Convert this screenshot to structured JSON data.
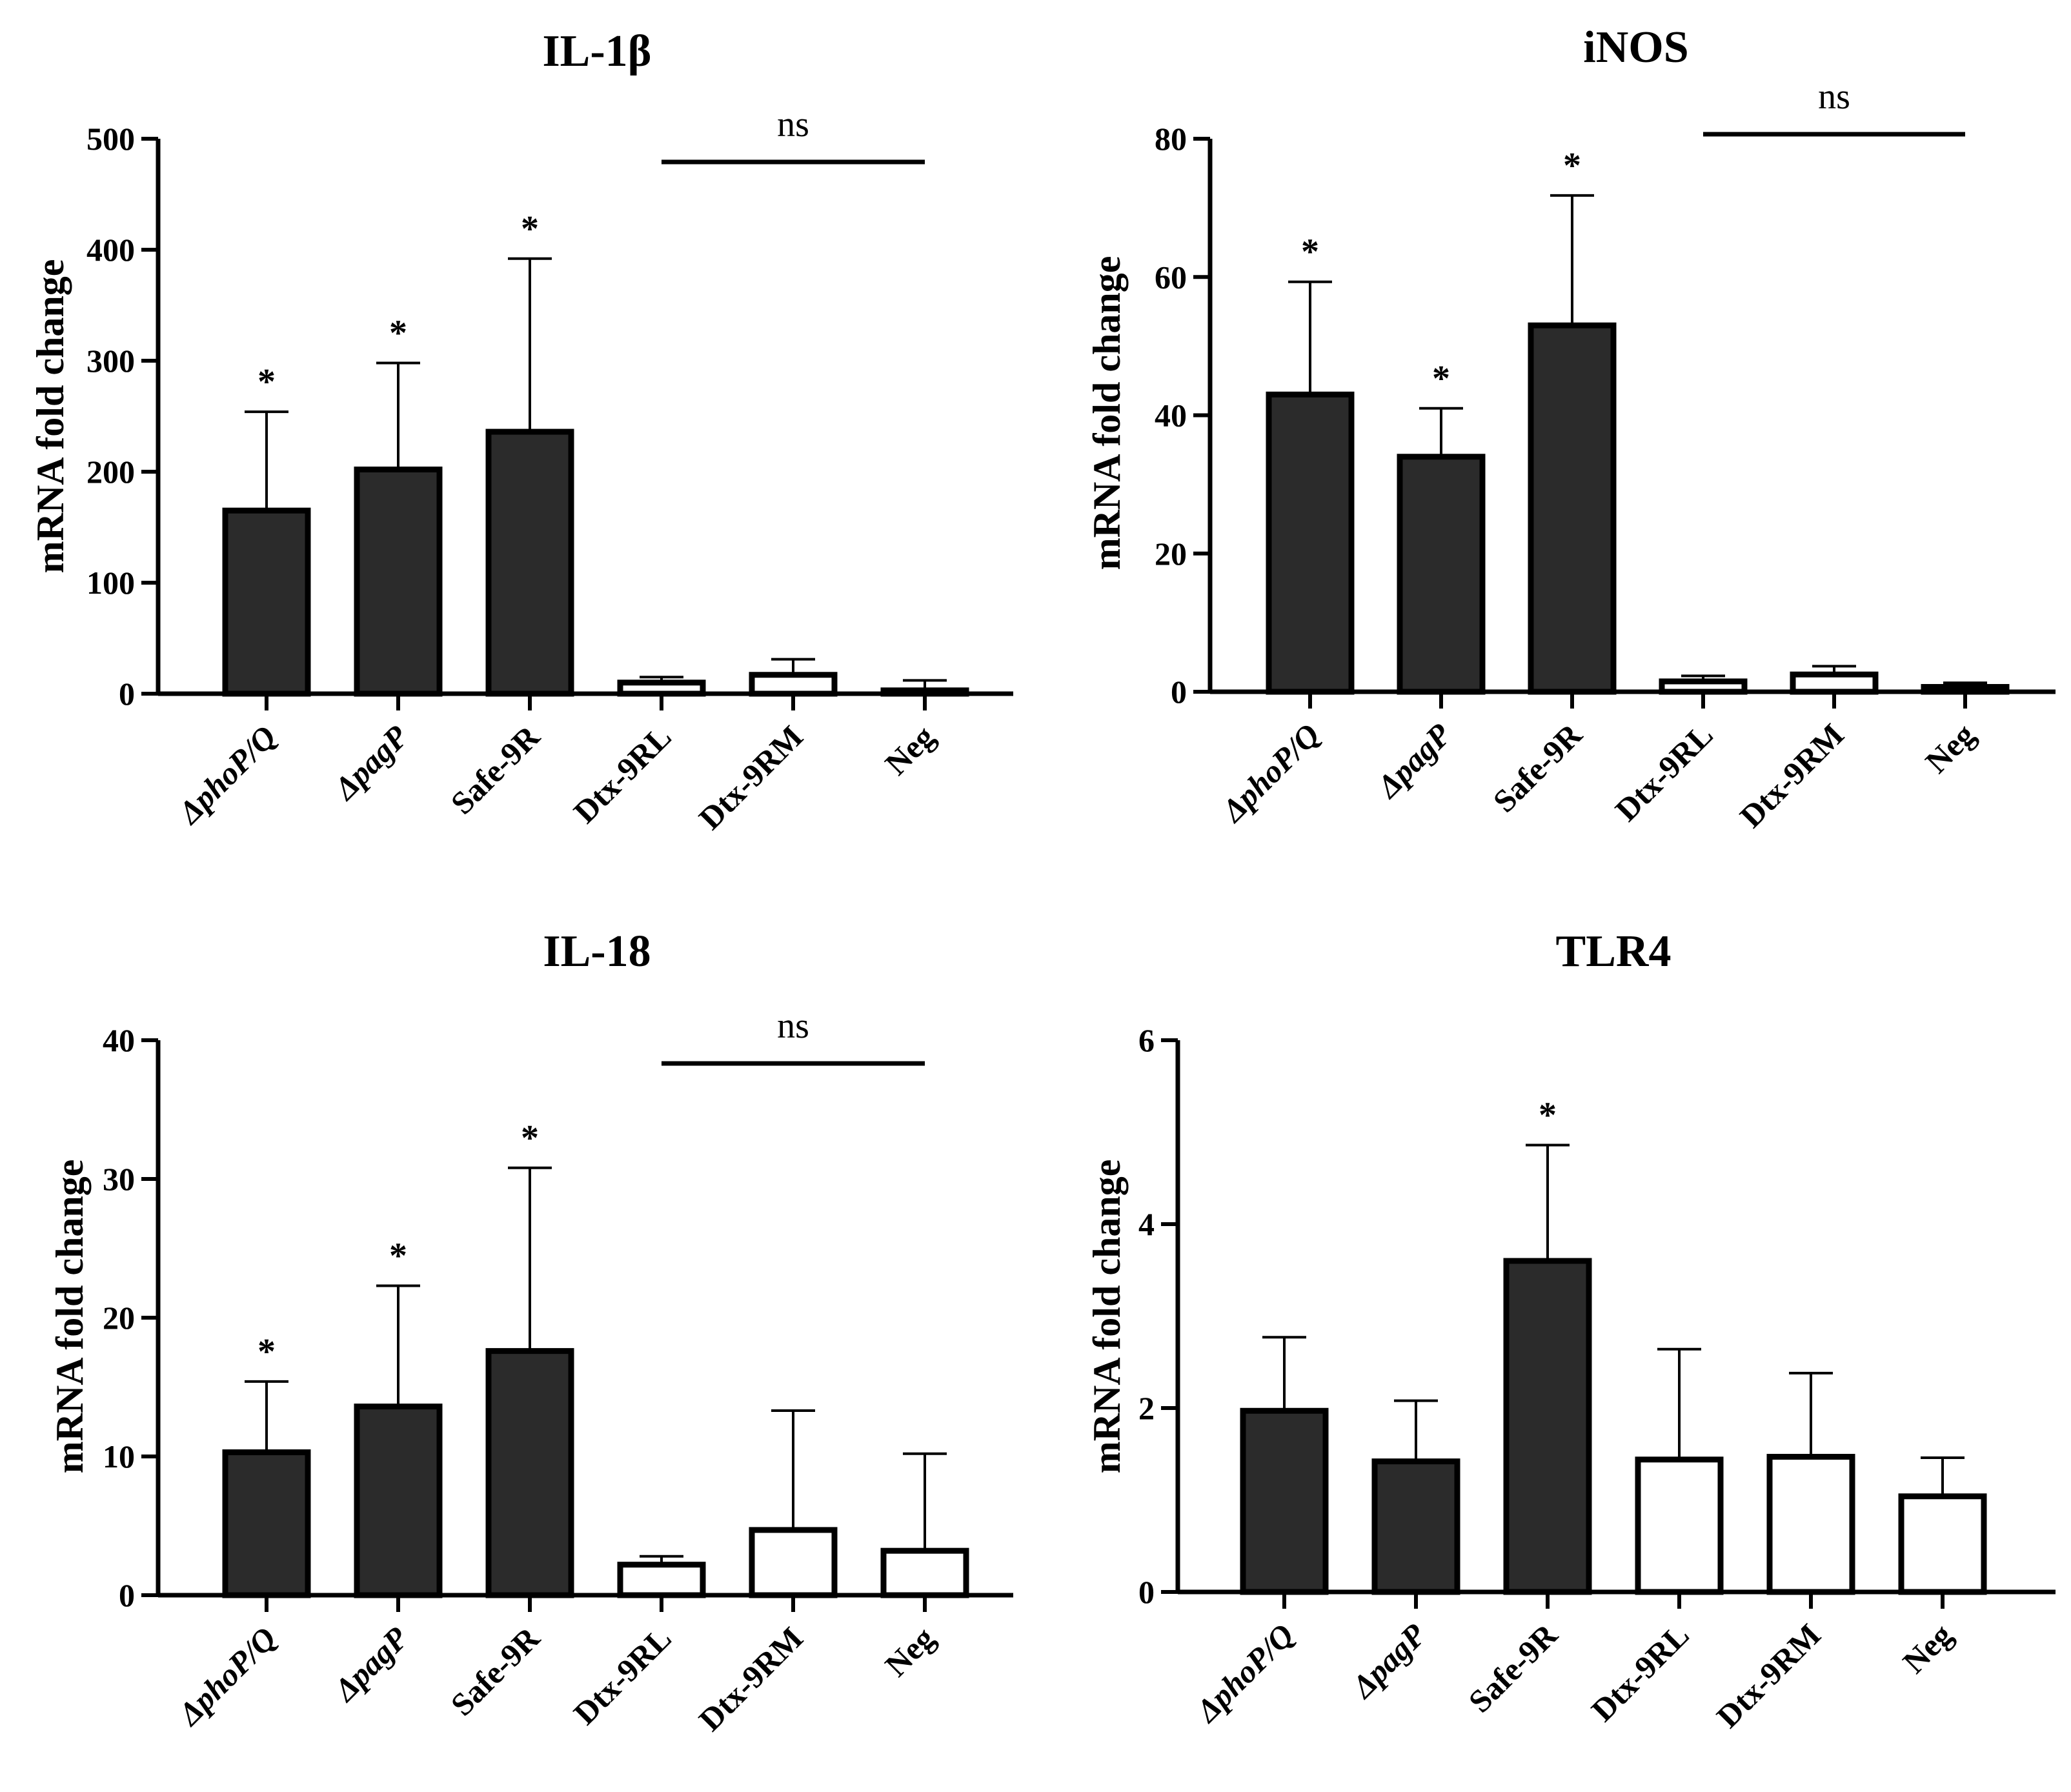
{
  "figure": {
    "panels": [
      {
        "title": "IL-1β",
        "ylabel": "mRNA fold change"
      },
      {
        "title": "iNOS",
        "ylabel": "mRNA fold change"
      },
      {
        "title": "IL-18",
        "ylabel": "mRNA fold change"
      },
      {
        "title": "TLR4",
        "ylabel": "mRNA fold change"
      }
    ]
  },
  "colors": {
    "dark_bar": "#2b2b2b",
    "light_bar": "#ffffff",
    "stroke": "#000000"
  },
  "chart_data": [
    {
      "type": "bar",
      "title": "IL-1β",
      "xlabel": "",
      "ylabel": "mRNA fold change",
      "ylim": [
        0,
        500
      ],
      "yticks": [
        0,
        100,
        200,
        300,
        400,
        500
      ],
      "categories": [
        "ΔphoP/Q",
        "ΔpagP",
        "Safe-9R",
        "Dtx-9RL",
        "Dtx-9RM",
        "Neg"
      ],
      "italic_categories": [
        true,
        true,
        false,
        false,
        false,
        false
      ],
      "values": [
        165,
        202,
        236,
        10,
        17,
        3
      ],
      "errors": [
        89,
        96,
        156,
        5,
        14,
        9
      ],
      "fill": [
        "dark",
        "dark",
        "dark",
        "light",
        "light",
        "light"
      ],
      "significance": [
        "*",
        "*",
        "*",
        "",
        "",
        ""
      ],
      "ns_bracket": {
        "label": "ns",
        "from": 3,
        "to": 5
      }
    },
    {
      "type": "bar",
      "title": "iNOS",
      "xlabel": "",
      "ylabel": "mRNA fold change",
      "ylim": [
        0,
        80
      ],
      "yticks": [
        0,
        20,
        40,
        60,
        80
      ],
      "categories": [
        "ΔphoP/Q",
        "ΔpagP",
        "Safe-9R",
        "Dtx-9RL",
        "Dtx-9RM",
        "Neg"
      ],
      "italic_categories": [
        true,
        true,
        false,
        false,
        false,
        false
      ],
      "values": [
        43,
        34,
        53,
        1.5,
        2.5,
        0.7
      ],
      "errors": [
        16.3,
        7,
        18.8,
        0.8,
        1.2,
        0.6
      ],
      "fill": [
        "dark",
        "dark",
        "dark",
        "light",
        "light",
        "light"
      ],
      "significance": [
        "*",
        "*",
        "*",
        "",
        "",
        ""
      ],
      "ns_bracket": {
        "label": "ns",
        "from": 3,
        "to": 5
      }
    },
    {
      "type": "bar",
      "title": "IL-18",
      "xlabel": "",
      "ylabel": "mRNA fold change",
      "ylim": [
        0,
        40
      ],
      "yticks": [
        0,
        10,
        20,
        30,
        40
      ],
      "categories": [
        "ΔphoP/Q",
        "ΔpagP",
        "Safe-9R",
        "Dtx-9RL",
        "Dtx-9RM",
        "Neg"
      ],
      "italic_categories": [
        true,
        true,
        false,
        false,
        false,
        false
      ],
      "values": [
        10.3,
        13.6,
        17.6,
        2.2,
        4.7,
        3.2
      ],
      "errors": [
        5.1,
        8.7,
        13.2,
        0.6,
        8.6,
        7.0
      ],
      "fill": [
        "dark",
        "dark",
        "dark",
        "light",
        "light",
        "light"
      ],
      "significance": [
        "*",
        "*",
        "*",
        "",
        "",
        ""
      ],
      "ns_bracket": {
        "label": "ns",
        "from": 3,
        "to": 5
      }
    },
    {
      "type": "bar",
      "title": "TLR4",
      "xlabel": "",
      "ylabel": "mRNA fold change",
      "ylim": [
        0,
        6
      ],
      "yticks": [
        0,
        2,
        4,
        6
      ],
      "categories": [
        "ΔphoP/Q",
        "ΔpagP",
        "Safe-9R",
        "Dtx-9RL",
        "Dtx-9RM",
        "Neg"
      ],
      "italic_categories": [
        true,
        true,
        false,
        false,
        false,
        false
      ],
      "values": [
        1.97,
        1.42,
        3.6,
        1.44,
        1.47,
        1.04
      ],
      "errors": [
        0.8,
        0.66,
        1.26,
        1.2,
        0.91,
        0.42
      ],
      "fill": [
        "dark",
        "dark",
        "dark",
        "light",
        "light",
        "light"
      ],
      "significance": [
        "",
        "",
        "*",
        "",
        "",
        ""
      ],
      "ns_bracket": null
    }
  ]
}
